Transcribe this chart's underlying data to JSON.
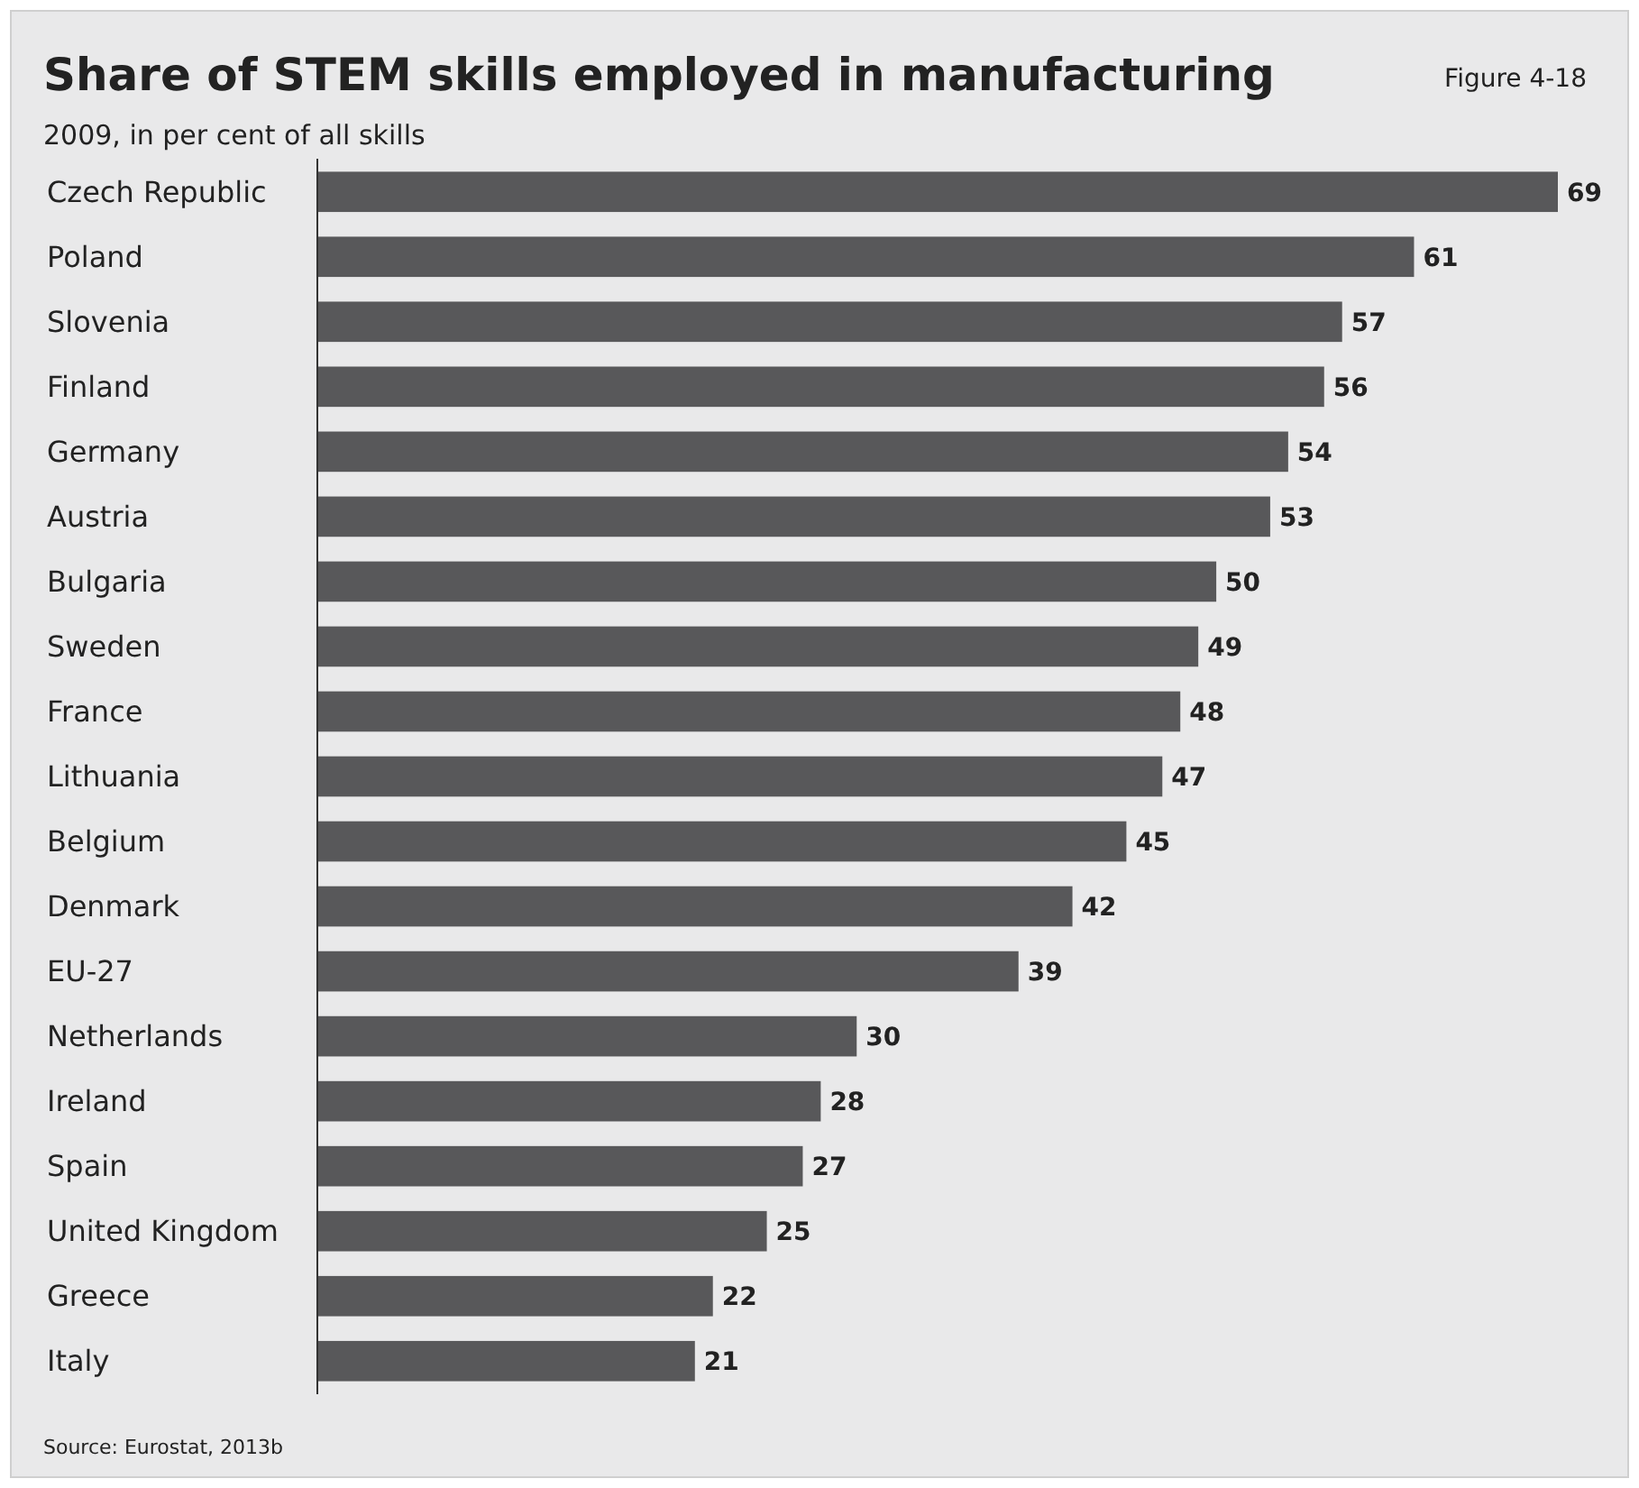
{
  "chart_data": {
    "type": "bar",
    "orientation": "horizontal",
    "title": "Share of STEM skills employed in manufacturing",
    "subtitle": "2009, in per cent of all skills",
    "annotations": [
      "Figure 4-18",
      "Source: Eurostat, 2013b"
    ],
    "categories": [
      "Czech Republic",
      "Poland",
      "Slovenia",
      "Finland",
      "Germany",
      "Austria",
      "Bulgaria",
      "Sweden",
      "France",
      "Lithuania",
      "Belgium",
      "Denmark",
      "EU-27",
      "Netherlands",
      "Ireland",
      "Spain",
      "United Kingdom",
      "Greece",
      "Italy"
    ],
    "values": [
      69,
      61,
      57,
      56,
      54,
      53,
      50,
      49,
      48,
      47,
      45,
      42,
      39,
      30,
      28,
      27,
      25,
      22,
      21
    ],
    "color": "#58585a",
    "data_labels": true
  }
}
